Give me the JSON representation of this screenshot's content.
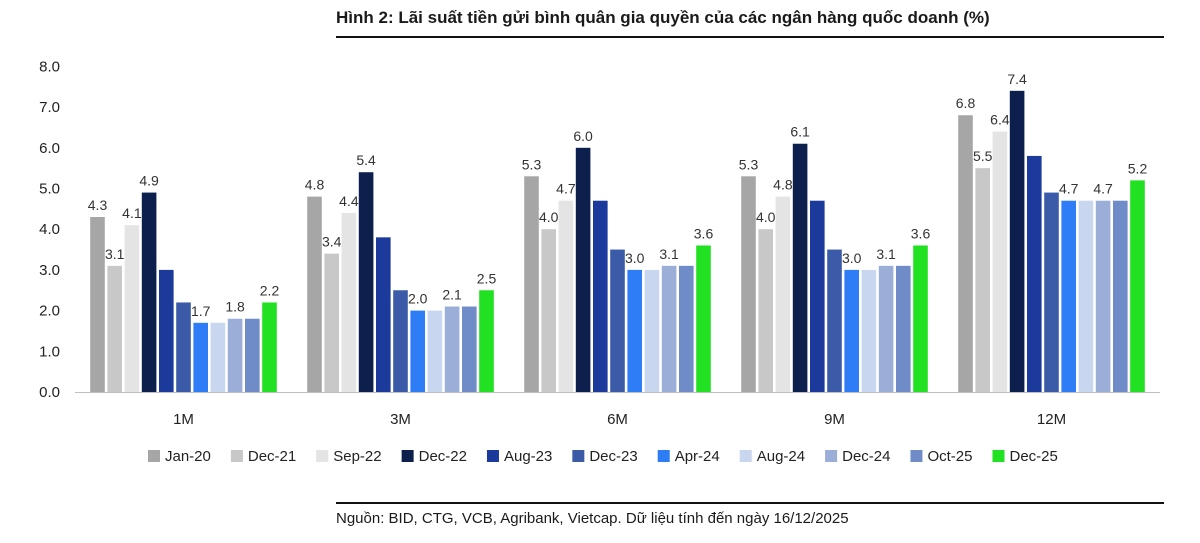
{
  "title": "Hình 2: Lãi suất tiền gửi bình quân gia quyền của các ngân hàng quốc doanh (%)",
  "source": "Nguồn: BID, CTG, VCB, Agribank, Vietcap. Dữ liệu tính đến ngày 16/12/2025",
  "chart_data": {
    "type": "bar",
    "categories": [
      "1M",
      "3M",
      "6M",
      "9M",
      "12M"
    ],
    "ylim": [
      0,
      8
    ],
    "yticks": [
      "0.0",
      "1.0",
      "2.0",
      "3.0",
      "4.0",
      "5.0",
      "6.0",
      "7.0",
      "8.0"
    ],
    "grid": false,
    "legend_position": "bottom",
    "series": [
      {
        "name": "Jan-20",
        "color": "#a6a6a6",
        "values": [
          4.3,
          4.8,
          5.3,
          5.3,
          6.8
        ],
        "labeled": true
      },
      {
        "name": "Dec-21",
        "color": "#c8c8c8",
        "values": [
          3.1,
          3.4,
          4.0,
          4.0,
          5.5
        ],
        "labeled": true
      },
      {
        "name": "Sep-22",
        "color": "#e4e4e4",
        "values": [
          4.1,
          4.4,
          4.7,
          4.8,
          6.4
        ],
        "labeled": true
      },
      {
        "name": "Dec-22",
        "color": "#0d1f4d",
        "values": [
          4.9,
          5.4,
          6.0,
          6.1,
          7.4
        ],
        "labeled": true
      },
      {
        "name": "Aug-23",
        "color": "#1c3a9c",
        "values": [
          3.0,
          3.8,
          4.7,
          4.7,
          5.8
        ],
        "labeled": false
      },
      {
        "name": "Dec-23",
        "color": "#3b5ba8",
        "values": [
          2.2,
          2.5,
          3.5,
          3.5,
          4.9
        ],
        "labeled": false
      },
      {
        "name": "Apr-24",
        "color": "#2e7cf6",
        "values": [
          1.7,
          2.0,
          3.0,
          3.0,
          4.7
        ],
        "labeled": true
      },
      {
        "name": "Aug-24",
        "color": "#c9d6ef",
        "values": [
          1.7,
          2.0,
          3.0,
          3.0,
          4.7
        ],
        "labeled": false
      },
      {
        "name": "Dec-24",
        "color": "#9aaed8",
        "values": [
          1.8,
          2.1,
          3.1,
          3.1,
          4.7
        ],
        "labeled": true
      },
      {
        "name": "Oct-25",
        "color": "#6f8cc9",
        "values": [
          1.8,
          2.1,
          3.1,
          3.1,
          4.7
        ],
        "labeled": false
      },
      {
        "name": "Dec-25",
        "color": "#22e022",
        "values": [
          2.2,
          2.5,
          3.6,
          3.6,
          5.2
        ],
        "labeled": true
      }
    ]
  }
}
